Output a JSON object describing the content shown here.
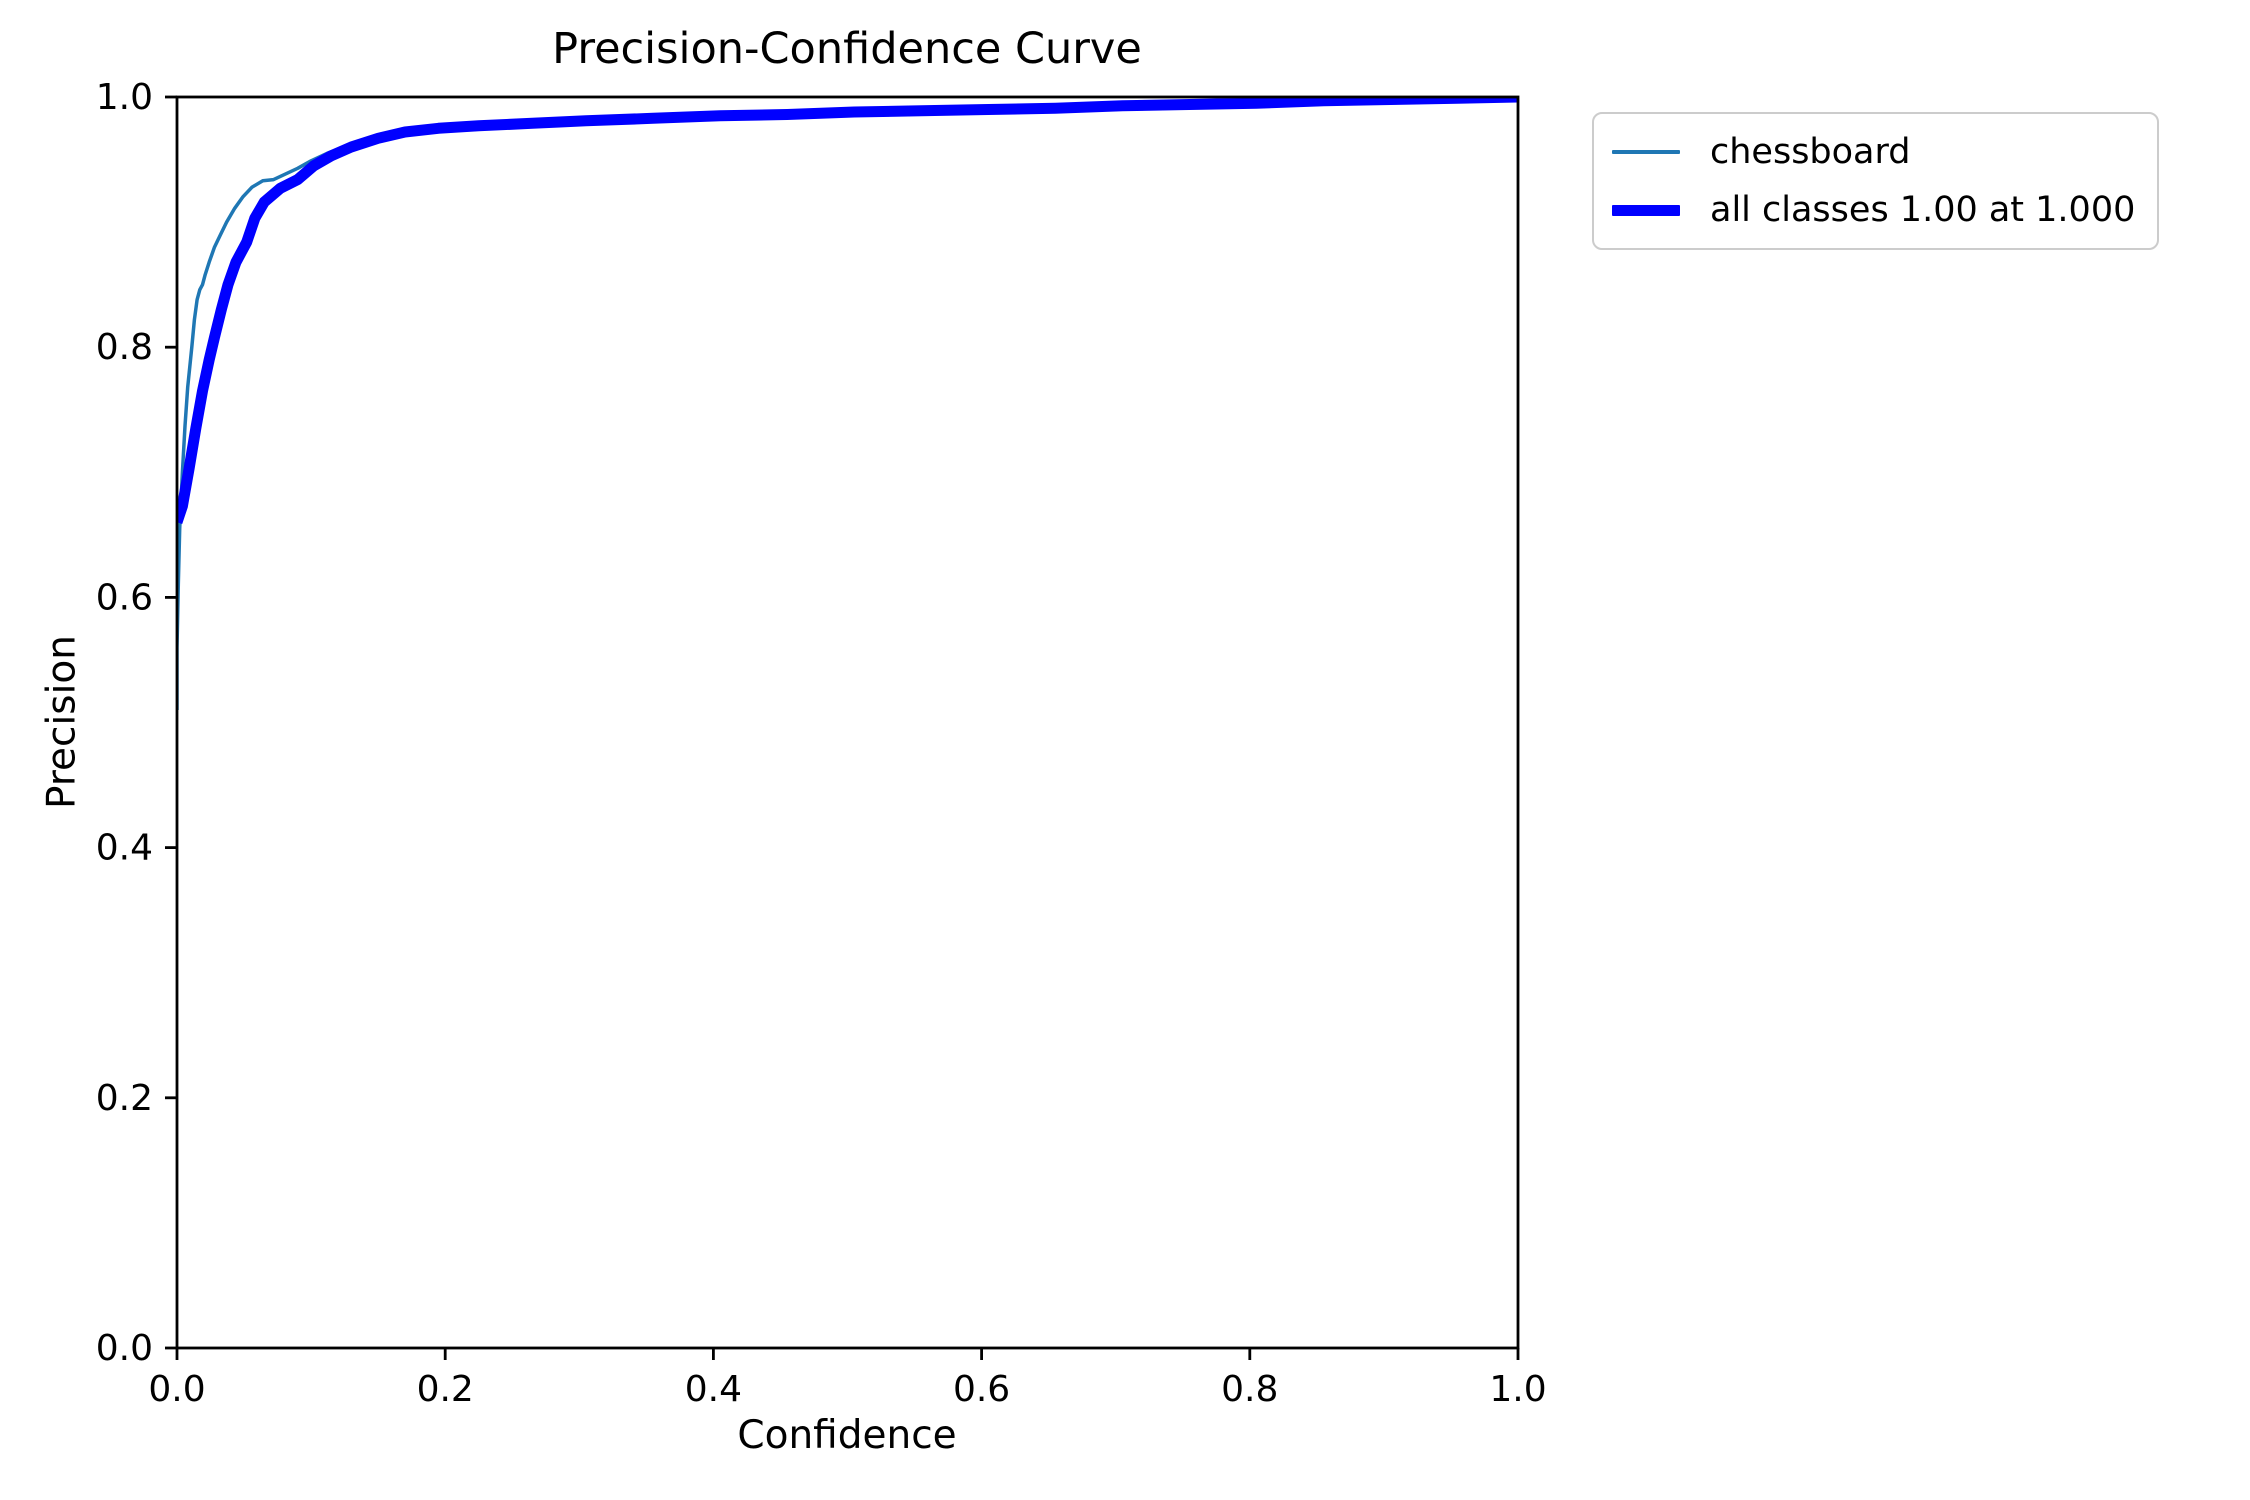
{
  "figure": {
    "background": "#ffffff"
  },
  "chart_data": {
    "type": "line",
    "title": "Precision-Confidence Curve",
    "xlabel": "Confidence",
    "ylabel": "Precision",
    "xlim": [
      0.0,
      1.0
    ],
    "ylim": [
      0.0,
      1.0
    ],
    "x_tick_labels": [
      "0.0",
      "0.2",
      "0.4",
      "0.6",
      "0.8",
      "1.0"
    ],
    "y_tick_labels": [
      "0.0",
      "0.2",
      "0.4",
      "0.6",
      "0.8",
      "1.0"
    ],
    "grid": false,
    "axis_color": "#000000",
    "legend_position": "outside upper right",
    "series": [
      {
        "name": "chessboard",
        "color": "#1f77b4",
        "line_width": 3.5,
        "points": [
          [
            0.0,
            0.51
          ],
          [
            0.0,
            0.56
          ],
          [
            0.001,
            0.61
          ],
          [
            0.002,
            0.655
          ],
          [
            0.004,
            0.7
          ],
          [
            0.006,
            0.737
          ],
          [
            0.008,
            0.768
          ],
          [
            0.011,
            0.8
          ],
          [
            0.013,
            0.822
          ],
          [
            0.015,
            0.838
          ],
          [
            0.017,
            0.846
          ],
          [
            0.019,
            0.85
          ],
          [
            0.021,
            0.858
          ],
          [
            0.024,
            0.868
          ],
          [
            0.028,
            0.88
          ],
          [
            0.032,
            0.889
          ],
          [
            0.037,
            0.9
          ],
          [
            0.043,
            0.911
          ],
          [
            0.049,
            0.92
          ],
          [
            0.056,
            0.928
          ],
          [
            0.064,
            0.933
          ],
          [
            0.072,
            0.934
          ],
          [
            0.08,
            0.938
          ],
          [
            0.09,
            0.943
          ],
          [
            0.1,
            0.949
          ],
          [
            0.112,
            0.955
          ],
          [
            0.125,
            0.96
          ],
          [
            0.14,
            0.965
          ],
          [
            0.155,
            0.97
          ],
          [
            0.175,
            0.974
          ],
          [
            0.2,
            0.977
          ],
          [
            0.23,
            0.979
          ],
          [
            0.27,
            0.981
          ],
          [
            0.31,
            0.983
          ],
          [
            0.36,
            0.985
          ],
          [
            0.41,
            0.986
          ],
          [
            0.46,
            0.987
          ],
          [
            0.51,
            0.989
          ],
          [
            0.56,
            0.99
          ],
          [
            0.61,
            0.991
          ],
          [
            0.66,
            0.993
          ],
          [
            0.71,
            0.994
          ],
          [
            0.76,
            0.995
          ],
          [
            0.81,
            0.996
          ],
          [
            0.86,
            0.997
          ],
          [
            0.91,
            0.998
          ],
          [
            0.955,
            0.999
          ],
          [
            1.0,
            1.0
          ]
        ]
      },
      {
        "name": "all classes 1.00 at 1.000",
        "color": "#0000ff",
        "line_width": 11,
        "points": [
          [
            0.0,
            0.66
          ],
          [
            0.004,
            0.673
          ],
          [
            0.009,
            0.703
          ],
          [
            0.014,
            0.735
          ],
          [
            0.019,
            0.765
          ],
          [
            0.024,
            0.79
          ],
          [
            0.028,
            0.808
          ],
          [
            0.033,
            0.83
          ],
          [
            0.038,
            0.85
          ],
          [
            0.044,
            0.868
          ],
          [
            0.052,
            0.884
          ],
          [
            0.058,
            0.903
          ],
          [
            0.065,
            0.916
          ],
          [
            0.077,
            0.927
          ],
          [
            0.09,
            0.934
          ],
          [
            0.102,
            0.945
          ],
          [
            0.115,
            0.953
          ],
          [
            0.13,
            0.96
          ],
          [
            0.15,
            0.967
          ],
          [
            0.17,
            0.972
          ],
          [
            0.195,
            0.975
          ],
          [
            0.225,
            0.977
          ],
          [
            0.265,
            0.979
          ],
          [
            0.305,
            0.981
          ],
          [
            0.355,
            0.983
          ],
          [
            0.405,
            0.985
          ],
          [
            0.455,
            0.986
          ],
          [
            0.505,
            0.988
          ],
          [
            0.555,
            0.989
          ],
          [
            0.605,
            0.99
          ],
          [
            0.655,
            0.991
          ],
          [
            0.705,
            0.993
          ],
          [
            0.755,
            0.994
          ],
          [
            0.805,
            0.995
          ],
          [
            0.855,
            0.997
          ],
          [
            0.905,
            0.998
          ],
          [
            0.955,
            0.999
          ],
          [
            1.0,
            1.0
          ]
        ]
      }
    ]
  },
  "legend": {
    "border_color": "#cccccc",
    "background": "#ffffff"
  }
}
